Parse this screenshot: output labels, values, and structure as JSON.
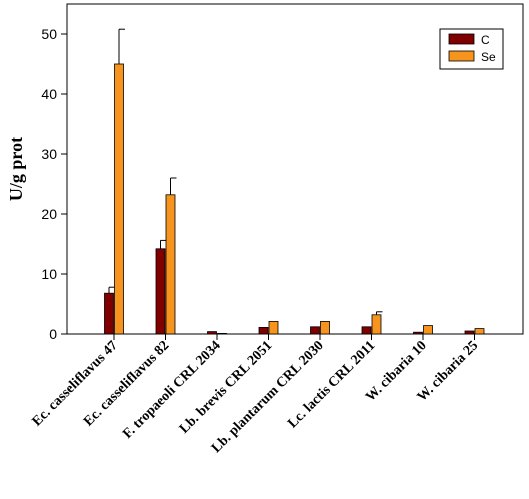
{
  "chart_data": {
    "type": "bar",
    "title": "",
    "xlabel": "",
    "ylabel": "U/g prot",
    "ylim": [
      0,
      55
    ],
    "yticks": [
      0,
      10,
      20,
      30,
      40,
      50
    ],
    "grid": false,
    "legend_position": "top-right",
    "categories": [
      "Ec. casseliflavus 47",
      "Ec. casseliflavus 82",
      "F. tropaeoli CRL 2034",
      "Lb. brevis CRL 2051",
      "Lb. plantarum CRL 2030",
      "Lc. lactis CRL 2011",
      "W. cibaria 10",
      "W. cibaria 25"
    ],
    "series": [
      {
        "name": "C",
        "color": "#800000",
        "values": [
          6.8,
          14.2,
          0.4,
          1.1,
          1.2,
          1.2,
          0.3,
          0.5
        ],
        "errors": [
          1.0,
          1.4,
          0.0,
          0.0,
          0.0,
          0.0,
          0.0,
          0.0
        ]
      },
      {
        "name": "Se",
        "color": "#F7941D",
        "values": [
          45.0,
          23.2,
          0.1,
          2.1,
          2.1,
          3.2,
          1.4,
          0.9
        ],
        "errors": [
          5.8,
          2.8,
          0.0,
          0.0,
          0.0,
          0.5,
          0.0,
          0.0
        ]
      }
    ]
  }
}
